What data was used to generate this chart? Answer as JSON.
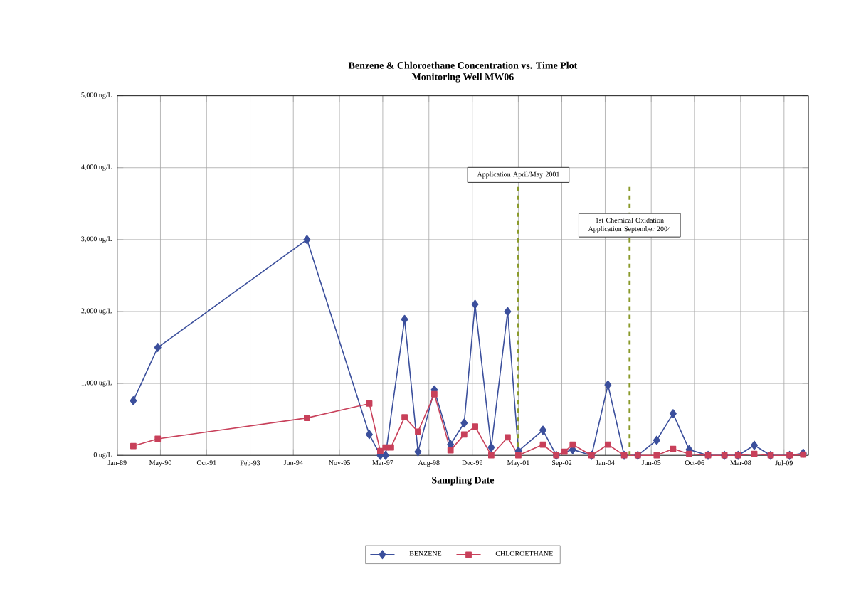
{
  "chart_data": {
    "type": "line",
    "title": "Benzene & Chloroethane Concentration vs. Time Plot",
    "subtitle": "Monitoring Well MW06",
    "xlabel": "Sampling Date",
    "xlim": [
      "1989-01-01",
      "2010-04-01"
    ],
    "xticks": [
      {
        "value": "1989-01-01",
        "label": "Jan-89"
      },
      {
        "value": "1990-05-01",
        "label": "May-90"
      },
      {
        "value": "1991-10-01",
        "label": "Oct-91"
      },
      {
        "value": "1993-02-01",
        "label": "Feb-93"
      },
      {
        "value": "1994-06-01",
        "label": "Jun-94"
      },
      {
        "value": "1995-11-01",
        "label": "Nov-95"
      },
      {
        "value": "1997-03-01",
        "label": "Mar-97"
      },
      {
        "value": "1998-08-01",
        "label": "Aug-98"
      },
      {
        "value": "1999-12-01",
        "label": "Dec-99"
      },
      {
        "value": "2001-05-01",
        "label": "May-01"
      },
      {
        "value": "2002-09-01",
        "label": "Sep-02"
      },
      {
        "value": "2004-01-01",
        "label": "Jan-04"
      },
      {
        "value": "2005-06-01",
        "label": "Jun-05"
      },
      {
        "value": "2006-10-01",
        "label": "Oct-06"
      },
      {
        "value": "2008-03-01",
        "label": "Mar-08"
      },
      {
        "value": "2009-07-01",
        "label": "Jul-09"
      }
    ],
    "ylim": [
      0,
      5000
    ],
    "yticks": [
      {
        "value": 0,
        "label": "0 ug/L"
      },
      {
        "value": 1000,
        "label": "1,000 ug/L"
      },
      {
        "value": 2000,
        "label": "2,000 ug/L"
      },
      {
        "value": 3000,
        "label": "3,000 ug/L"
      },
      {
        "value": 4000,
        "label": "4,000 ug/L"
      },
      {
        "value": 5000,
        "label": "5,000 ug/L"
      }
    ],
    "grid": true,
    "legend": "bottom",
    "series": [
      {
        "name": "BENZENE",
        "color": "#3b4f9c",
        "marker": "diamond",
        "x": [
          "1989-07",
          "1990-04",
          "1994-11",
          "1996-10",
          "1997-02",
          "1997-04",
          "1997-11",
          "1998-04",
          "1998-10",
          "1999-04",
          "1999-09",
          "2000-01",
          "2000-07",
          "2001-01",
          "2001-05",
          "2002-02",
          "2002-07",
          "2003-01",
          "2003-08",
          "2004-02",
          "2004-08",
          "2005-01",
          "2005-08",
          "2006-02",
          "2006-08",
          "2007-03",
          "2007-09",
          "2008-02",
          "2008-08",
          "2009-02",
          "2009-09",
          "2010-02"
        ],
        "values": [
          760,
          1500,
          3000,
          290,
          0,
          0,
          1890,
          50,
          910,
          150,
          450,
          2100,
          110,
          2000,
          60,
          350,
          0,
          80,
          0,
          980,
          0,
          0,
          210,
          580,
          80,
          0,
          0,
          0,
          140,
          0,
          0,
          30
        ]
      },
      {
        "name": "CHLOROETHANE",
        "color": "#c8405a",
        "marker": "square",
        "x": [
          "1989-07",
          "1990-04",
          "1994-11",
          "1996-10",
          "1997-02",
          "1997-04",
          "1997-06",
          "1997-11",
          "1998-04",
          "1998-10",
          "1999-04",
          "1999-09",
          "2000-01",
          "2000-07",
          "2001-01",
          "2001-05",
          "2002-02",
          "2002-07",
          "2002-10",
          "2003-01",
          "2003-08",
          "2004-02",
          "2004-08",
          "2005-01",
          "2005-08",
          "2006-02",
          "2006-08",
          "2007-03",
          "2007-09",
          "2008-02",
          "2008-08",
          "2009-02",
          "2009-09",
          "2010-02"
        ],
        "values": [
          130,
          230,
          520,
          720,
          60,
          110,
          110,
          530,
          330,
          850,
          70,
          290,
          400,
          0,
          250,
          0,
          150,
          0,
          50,
          150,
          0,
          150,
          0,
          0,
          0,
          90,
          20,
          0,
          0,
          0,
          20,
          0,
          0,
          10
        ]
      }
    ],
    "ref_lines": [
      {
        "axis": "x",
        "value": "2001-05",
        "label": "Application April/May 2001",
        "color": "#8a9a2a",
        "line_style": "dashed"
      },
      {
        "axis": "x",
        "value": "2004-10",
        "label": "1st Chemical Oxidation Application September 2004",
        "color": "#8a9a2a",
        "line_style": "dashed"
      }
    ]
  }
}
